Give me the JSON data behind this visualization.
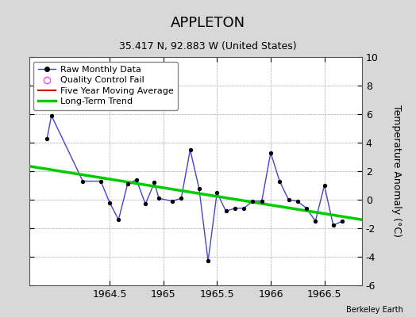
{
  "title": "APPLETON",
  "subtitle": "35.417 N, 92.883 W (United States)",
  "credit": "Berkeley Earth",
  "ylabel": "Temperature Anomaly (°C)",
  "xlim": [
    1963.75,
    1966.85
  ],
  "ylim": [
    -6,
    10
  ],
  "yticks": [
    -6,
    -4,
    -2,
    0,
    2,
    4,
    6,
    8,
    10
  ],
  "xticks": [
    1964.5,
    1965.0,
    1965.5,
    1966.0,
    1966.5
  ],
  "xticklabels": [
    "1964.5",
    "1965",
    "1965.5",
    "1966",
    "1966.5"
  ],
  "background_color": "#d8d8d8",
  "plot_bg_color": "#ffffff",
  "grid_color": "#aaaaaa",
  "raw_x": [
    1963.917,
    1963.958,
    1964.25,
    1964.417,
    1964.5,
    1964.583,
    1964.667,
    1964.75,
    1964.833,
    1964.917,
    1964.958,
    1965.083,
    1965.167,
    1965.25,
    1965.333,
    1965.417,
    1965.5,
    1965.583,
    1965.667,
    1965.75,
    1965.833,
    1965.917,
    1966.0,
    1966.083,
    1966.167,
    1966.25,
    1966.333,
    1966.417,
    1966.5,
    1966.583,
    1966.667
  ],
  "raw_y": [
    4.3,
    5.9,
    1.3,
    1.3,
    -0.2,
    -1.4,
    1.1,
    1.4,
    -0.3,
    1.2,
    0.1,
    -0.1,
    0.1,
    3.5,
    0.8,
    -4.3,
    0.5,
    -0.8,
    -0.6,
    -0.6,
    -0.1,
    -0.1,
    3.3,
    1.3,
    0.0,
    -0.1,
    -0.6,
    -1.5,
    1.0,
    -1.8,
    -1.5
  ],
  "trend_x": [
    1963.75,
    1966.85
  ],
  "trend_y": [
    2.35,
    -1.4
  ],
  "raw_color": "#4444cc",
  "raw_marker_color": "#000000",
  "trend_color": "#00cc00",
  "mavg_color": "#cc0000",
  "qc_color": "#ff44ff",
  "title_fontsize": 13,
  "subtitle_fontsize": 9,
  "tick_fontsize": 9,
  "ylabel_fontsize": 9,
  "legend_fontsize": 8
}
